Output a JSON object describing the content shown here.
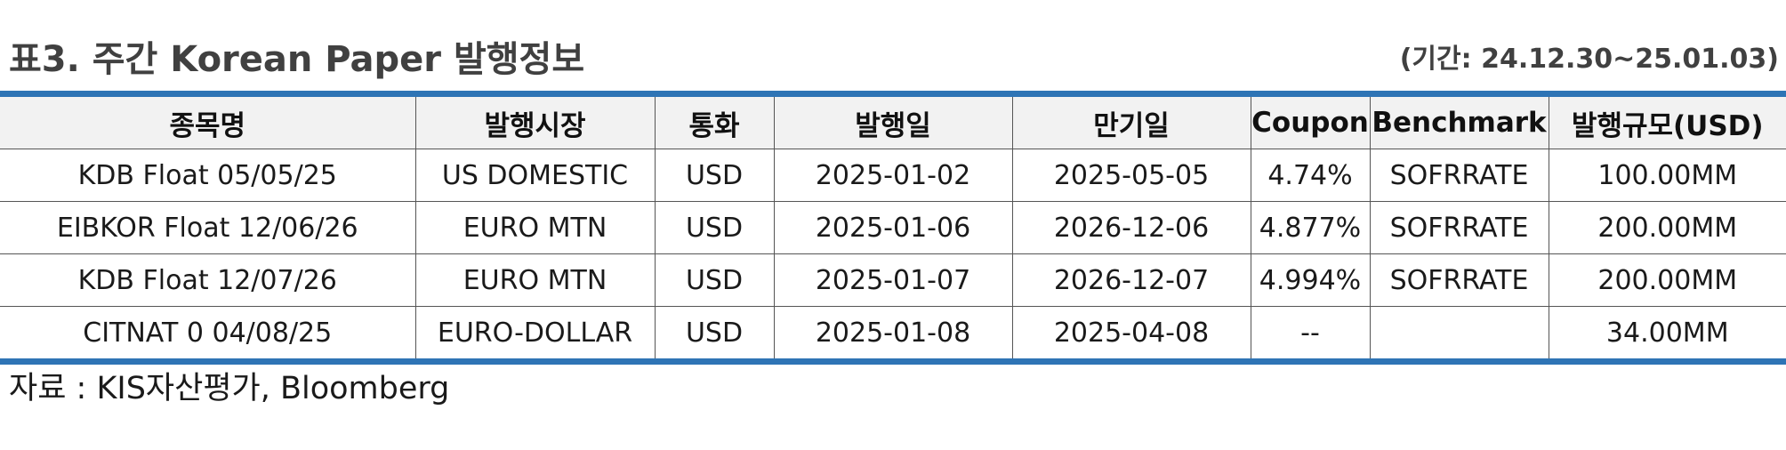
{
  "header": {
    "title": "표3. 주간 Korean Paper 발행정보",
    "period": "(기간: 24.12.30~25.01.03)"
  },
  "table": {
    "columns": [
      "종목명",
      "발행시장",
      "통화",
      "발행일",
      "만기일",
      "Coupon",
      "Benchmark",
      "발행규모(USD)"
    ],
    "rows": [
      [
        "KDB Float 05/05/25",
        "US DOMESTIC",
        "USD",
        "2025-01-02",
        "2025-05-05",
        "4.74%",
        "SOFRRATE",
        "100.00MM"
      ],
      [
        "EIBKOR Float 12/06/26",
        "EURO MTN",
        "USD",
        "2025-01-06",
        "2026-12-06",
        "4.877%",
        "SOFRRATE",
        "200.00MM"
      ],
      [
        "KDB Float 12/07/26",
        "EURO MTN",
        "USD",
        "2025-01-07",
        "2026-12-07",
        "4.994%",
        "SOFRRATE",
        "200.00MM"
      ],
      [
        "CITNAT 0 04/08/25",
        "EURO-DOLLAR",
        "USD",
        "2025-01-08",
        "2025-04-08",
        "--",
        "",
        "34.00MM"
      ]
    ]
  },
  "footer": {
    "source": "자료 : KIS자산평가, Bloomberg"
  },
  "colors": {
    "accent_rule": "#2e74b5",
    "header_bg": "#f2f2f2"
  }
}
